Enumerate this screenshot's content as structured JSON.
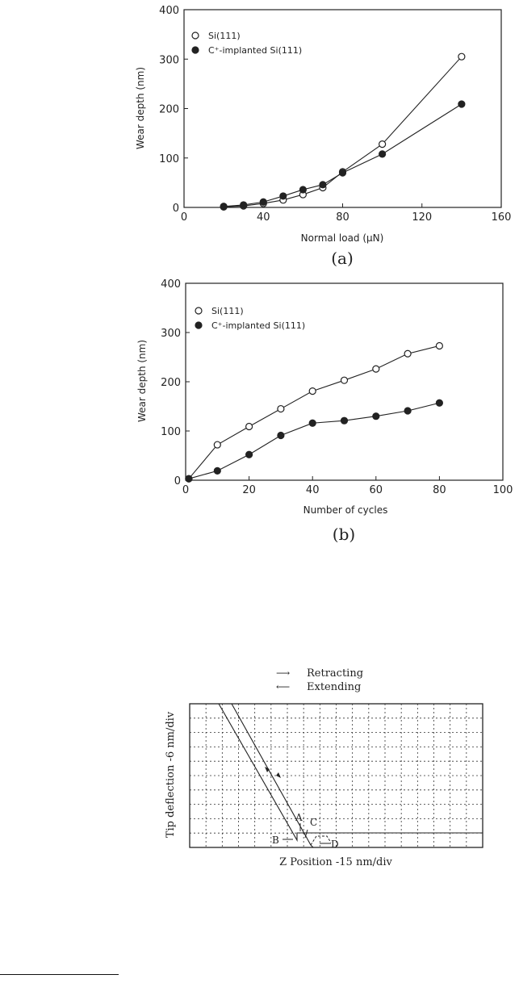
{
  "chart_data": [
    {
      "type": "line",
      "panel_label": "(a)",
      "xlabel": "Normal load (μN)",
      "ylabel": "Wear depth (nm)",
      "xlim": [
        0,
        160
      ],
      "ylim": [
        0,
        400
      ],
      "xticks": [
        0,
        40,
        80,
        120,
        160
      ],
      "yticks": [
        0,
        100,
        200,
        300,
        400
      ],
      "legend_position": "top-left",
      "series": [
        {
          "name": "Si(111)",
          "marker": "open-circle",
          "x": [
            20,
            30,
            40,
            50,
            60,
            70,
            80,
            100,
            140
          ],
          "y": [
            1,
            3,
            8,
            15,
            26,
            40,
            72,
            128,
            305
          ]
        },
        {
          "name": "C⁺-implanted Si(111)",
          "marker": "filled-circle",
          "x": [
            20,
            30,
            40,
            50,
            60,
            70,
            80,
            100,
            140
          ],
          "y": [
            2,
            5,
            11,
            23,
            36,
            46,
            70,
            108,
            209
          ]
        }
      ]
    },
    {
      "type": "line",
      "panel_label": "(b)",
      "xlabel": "Number of cycles",
      "ylabel": "Wear depth (nm)",
      "xlim": [
        0,
        100
      ],
      "ylim": [
        0,
        400
      ],
      "xticks": [
        0,
        20,
        40,
        60,
        80,
        100
      ],
      "yticks": [
        0,
        100,
        200,
        300,
        400
      ],
      "legend_position": "top-left",
      "series": [
        {
          "name": "Si(111)",
          "marker": "open-circle",
          "x": [
            1,
            10,
            20,
            30,
            40,
            50,
            60,
            70,
            80
          ],
          "y": [
            3,
            72,
            109,
            145,
            181,
            203,
            226,
            257,
            273
          ]
        },
        {
          "name": "C⁺-implanted Si(111)",
          "marker": "filled-circle",
          "x": [
            1,
            10,
            20,
            30,
            40,
            50,
            60,
            70,
            80
          ],
          "y": [
            3,
            19,
            52,
            91,
            116,
            121,
            130,
            141,
            157
          ]
        }
      ]
    }
  ],
  "force_curve": {
    "legend": [
      {
        "arrow": "⟶",
        "label": "Retracting"
      },
      {
        "arrow": "⟵",
        "label": "Extending"
      }
    ],
    "xlabel": "Z Position -15 nm/div",
    "ylabel": "Tip deflection -6 nm/div",
    "point_labels": [
      "A",
      "B",
      "C",
      "D"
    ]
  }
}
